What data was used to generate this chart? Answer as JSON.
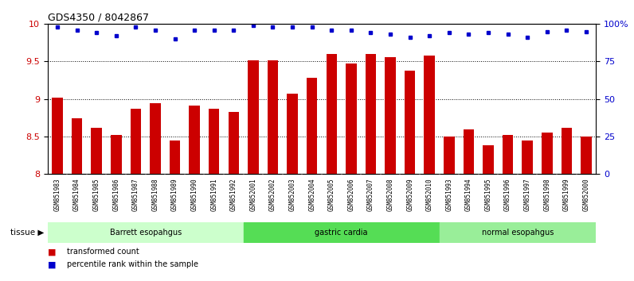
{
  "title": "GDS4350 / 8042867",
  "samples": [
    "GSM851983",
    "GSM851984",
    "GSM851985",
    "GSM851986",
    "GSM851987",
    "GSM851988",
    "GSM851989",
    "GSM851990",
    "GSM851991",
    "GSM851992",
    "GSM852001",
    "GSM852002",
    "GSM852003",
    "GSM852004",
    "GSM852005",
    "GSM852006",
    "GSM852007",
    "GSM852008",
    "GSM852009",
    "GSM852010",
    "GSM851993",
    "GSM851994",
    "GSM851995",
    "GSM851996",
    "GSM851997",
    "GSM851998",
    "GSM851999",
    "GSM852000"
  ],
  "bar_values": [
    9.02,
    8.74,
    8.62,
    8.52,
    8.87,
    8.95,
    8.45,
    8.91,
    8.87,
    8.83,
    9.52,
    9.52,
    9.07,
    9.28,
    9.6,
    9.47,
    9.6,
    9.56,
    9.38,
    9.58,
    8.5,
    8.6,
    8.38,
    8.52,
    8.45,
    8.55,
    8.62,
    8.5
  ],
  "dot_values_pct": [
    98,
    96,
    94,
    92,
    98,
    96,
    90,
    96,
    96,
    96,
    99,
    98,
    98,
    98,
    96,
    96,
    94,
    93,
    91,
    92,
    94,
    93,
    94,
    93,
    91,
    95,
    96,
    95
  ],
  "bar_color": "#cc0000",
  "dot_color": "#0000cc",
  "ylim_left": [
    8.0,
    10.0
  ],
  "ylim_right": [
    0,
    100
  ],
  "yticks_left": [
    8.0,
    8.5,
    9.0,
    9.5,
    10.0
  ],
  "ytick_labels_left": [
    "8",
    "8.5",
    "9",
    "9.5",
    "10"
  ],
  "yticks_right": [
    0,
    25,
    50,
    75,
    100
  ],
  "ytick_labels_right": [
    "0",
    "25",
    "50",
    "75",
    "100%"
  ],
  "hgrid_values": [
    8.5,
    9.0,
    9.5
  ],
  "groups": [
    {
      "label": "Barrett esopahgus",
      "start": 0,
      "end": 10,
      "color": "#ccffcc"
    },
    {
      "label": "gastric cardia",
      "start": 10,
      "end": 20,
      "color": "#55dd55"
    },
    {
      "label": "normal esopahgus",
      "start": 20,
      "end": 28,
      "color": "#99ee99"
    }
  ],
  "tissue_label": "tissue",
  "legend_items": [
    {
      "label": "transformed count",
      "color": "#cc0000"
    },
    {
      "label": "percentile rank within the sample",
      "color": "#0000cc"
    }
  ],
  "bar_width": 0.55,
  "background_color": "#ffffff",
  "x_tick_bg": "#cccccc",
  "title_fontsize": 9,
  "axis_fontsize": 8,
  "tick_label_fontsize": 6.5,
  "sample_fontsize": 5.5
}
